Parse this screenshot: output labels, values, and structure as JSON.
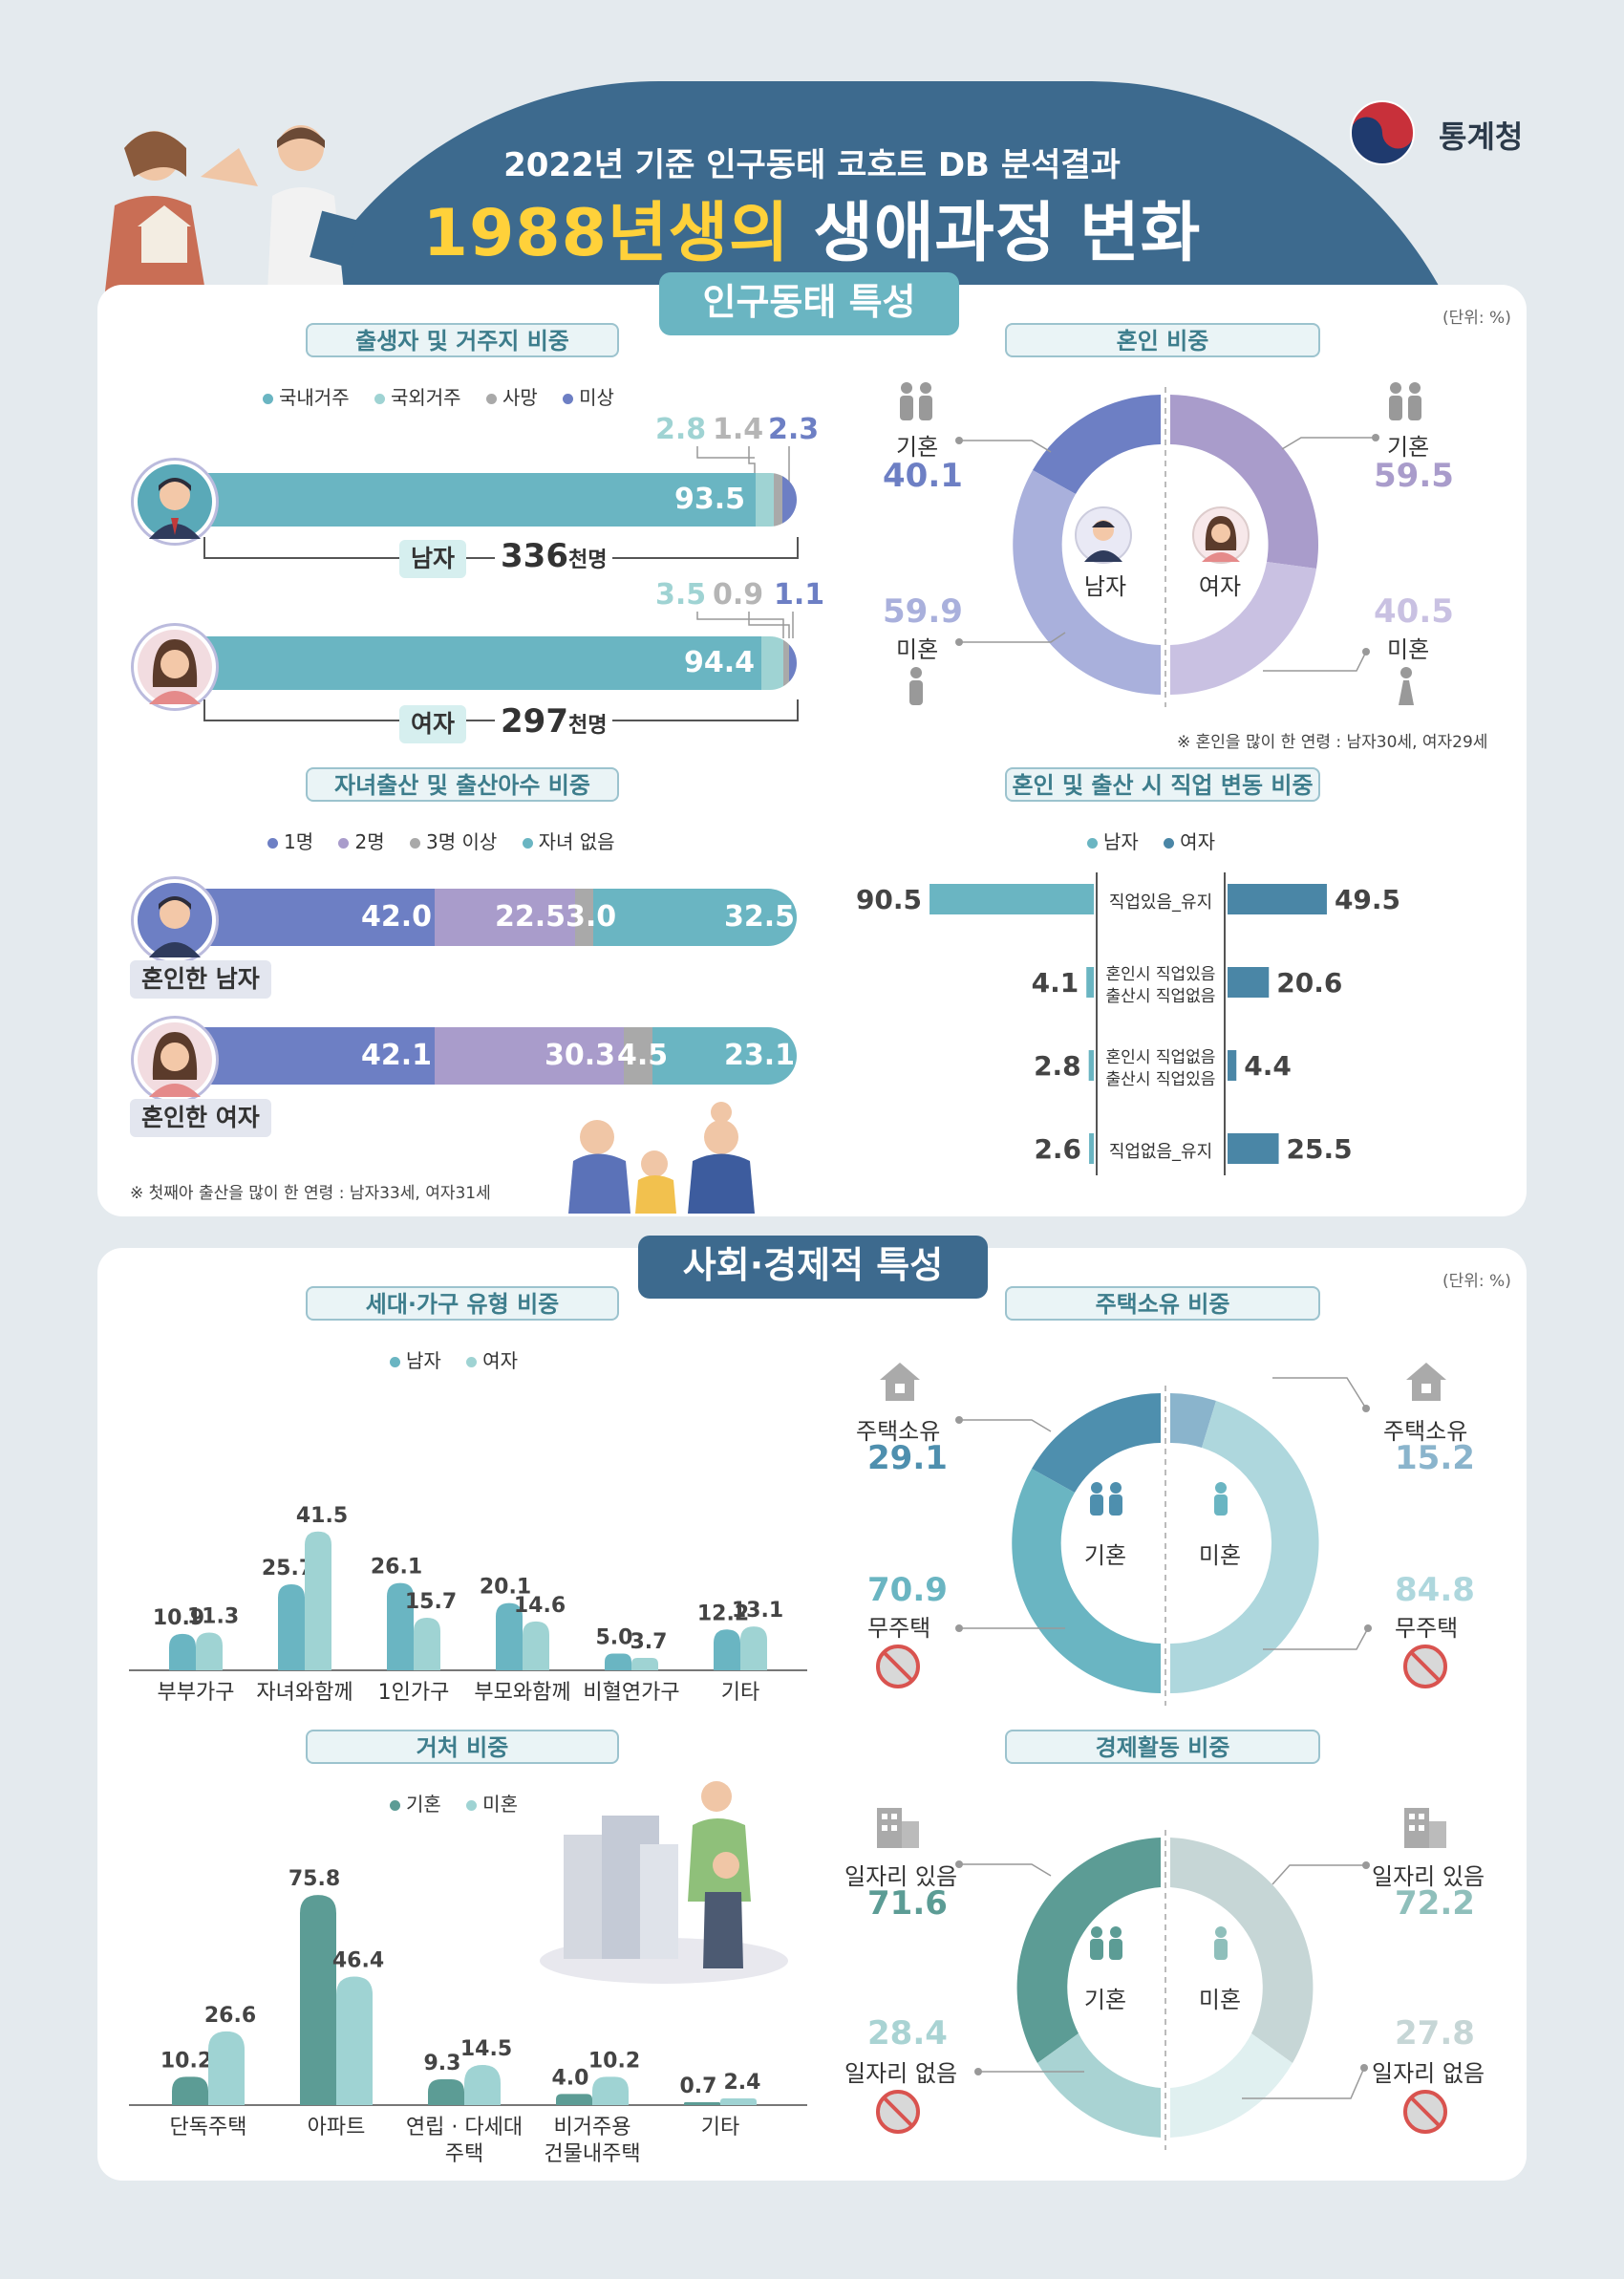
{
  "header": {
    "title_line1": "2022년 기준 인구동태 코호트 DB 분석결과",
    "title_line2_highlight": "1988년생의",
    "title_line2_rest": " 생애과정 변화",
    "agency": "통계청"
  },
  "section1": {
    "title": "인구동태 특성",
    "unit": "(단위: %)",
    "birth_residence": {
      "title": "출생자 및 거주지 비중",
      "legend": [
        "국내거주",
        "국외거주",
        "사망",
        "미상"
      ],
      "male": {
        "label": "남자",
        "count": "336",
        "count_unit": "천명",
        "domestic": "93.5",
        "abroad": "2.8",
        "death": "1.4",
        "unknown": "2.3"
      },
      "female": {
        "label": "여자",
        "count": "297",
        "count_unit": "천명",
        "domestic": "94.4",
        "abroad": "3.5",
        "death": "0.9",
        "unknown": "1.1"
      }
    },
    "marriage": {
      "title": "혼인 비중",
      "male": {
        "label": "남자",
        "married_label": "기혼",
        "married": "40.1",
        "single_label": "미혼",
        "single": "59.9"
      },
      "female": {
        "label": "여자",
        "married_label": "기혼",
        "married": "59.5",
        "single_label": "미혼",
        "single": "40.5"
      },
      "note": "※ 혼인을 많이 한 연령 : 남자30세, 여자29세"
    },
    "children": {
      "title": "자녀출산 및 출산아수 비중",
      "legend": [
        "1명",
        "2명",
        "3명 이상",
        "자녀 없음"
      ],
      "male": {
        "label": "혼인한 남자",
        "one": "42.0",
        "two": "22.5",
        "three": "3.0",
        "none": "32.5"
      },
      "female": {
        "label": "혼인한 여자",
        "one": "42.1",
        "two": "30.3",
        "three": "4.5",
        "none": "23.1"
      },
      "note": "※ 첫째아 출산을 많이 한 연령 : 남자33세, 여자31세"
    },
    "job_change": {
      "title": "혼인 및 출산 시 직업 변동 비중",
      "legend": [
        "남자",
        "여자"
      ],
      "rows": [
        {
          "label1": "직업있음_유지",
          "label2": "",
          "male": "90.5",
          "female": "49.5"
        },
        {
          "label1": "혼인시 직업있음",
          "label2": "출산시 직업없음",
          "male": "4.1",
          "female": "20.6"
        },
        {
          "label1": "혼인시 직업없음",
          "label2": "출산시 직업있음",
          "male": "2.8",
          "female": "4.4"
        },
        {
          "label1": "직업없음_유지",
          "label2": "",
          "male": "2.6",
          "female": "25.5"
        }
      ]
    }
  },
  "section2": {
    "title": "사회·경제적 특성",
    "unit": "(단위: %)",
    "household": {
      "title": "세대·가구 유형 비중",
      "legend": [
        "남자",
        "여자"
      ]
    },
    "housing": {
      "title": "주택소유 비중",
      "married_label": "기혼",
      "single_label": "미혼",
      "own_label": "주택소유",
      "none_label": "무주택",
      "married_own": "29.1",
      "married_none": "70.9",
      "single_own": "15.2",
      "single_none": "84.8"
    },
    "residence": {
      "title": "거처 비중",
      "legend": [
        "기혼",
        "미혼"
      ]
    },
    "economic": {
      "title": "경제활동 비중",
      "married_label": "기혼",
      "single_label": "미혼",
      "job_label": "일자리 있음",
      "nojob_label": "일자리 없음",
      "married_job": "71.6",
      "married_nojob": "28.4",
      "single_job": "72.2",
      "single_nojob": "27.8"
    }
  },
  "chart_data": [
    {
      "type": "bar",
      "title": "세대·가구 유형 비중",
      "categories": [
        "부부가구",
        "자녀와함께",
        "1인가구",
        "부모와함께",
        "비혈연가구",
        "기타"
      ],
      "series": [
        {
          "name": "남자",
          "values": [
            10.9,
            25.7,
            26.1,
            20.1,
            5.0,
            12.2
          ]
        },
        {
          "name": "여자",
          "values": [
            11.3,
            41.5,
            15.7,
            14.6,
            3.7,
            13.1
          ]
        }
      ]
    },
    {
      "type": "bar",
      "title": "거처 비중",
      "categories": [
        "단독주택",
        "아파트",
        "연립 · 다세대|주택",
        "비거주용|건물내주택",
        "기타"
      ],
      "series": [
        {
          "name": "기혼",
          "values": [
            10.2,
            75.8,
            9.3,
            4.0,
            0.7
          ]
        },
        {
          "name": "미혼",
          "values": [
            26.6,
            46.4,
            14.5,
            10.2,
            2.4
          ]
        }
      ]
    }
  ],
  "colors": {
    "banner": "#3d6a8e",
    "teal": "#6ab5c2",
    "light_teal": "#9fd3d3",
    "gray": "#a9a9a9",
    "navy_purple": "#6d7fc4",
    "lavender": "#a99ccb",
    "housing_dark": "#4e8fae",
    "housing_mid": "#6ab5c2",
    "econ_dark": "#5c9c95"
  }
}
